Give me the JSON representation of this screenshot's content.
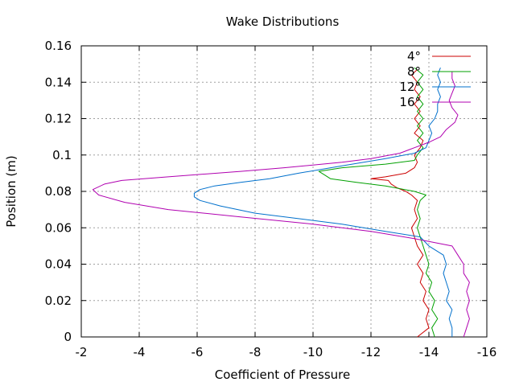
{
  "chart_data": {
    "type": "line",
    "title": "Wake Distributions",
    "xlabel": "Coefficient of Pressure",
    "ylabel": "Position (m)",
    "xlim": [
      -2,
      -16
    ],
    "ylim": [
      0,
      0.16
    ],
    "x_reversed": true,
    "grid": true,
    "legend_position": "top-right",
    "x_ticks": [
      {
        "value": -2,
        "label": "-2"
      },
      {
        "value": -4,
        "label": "-4"
      },
      {
        "value": -6,
        "label": "-6"
      },
      {
        "value": -8,
        "label": "-8"
      },
      {
        "value": -10,
        "label": "-10"
      },
      {
        "value": -12,
        "label": "-12"
      },
      {
        "value": -14,
        "label": "-14"
      },
      {
        "value": -16,
        "label": "-16"
      }
    ],
    "y_ticks": [
      {
        "value": 0,
        "label": "0"
      },
      {
        "value": 0.02,
        "label": "0.02"
      },
      {
        "value": 0.04,
        "label": "0.04"
      },
      {
        "value": 0.06,
        "label": "0.06"
      },
      {
        "value": 0.08,
        "label": "0.08"
      },
      {
        "value": 0.1,
        "label": "0.1"
      },
      {
        "value": 0.12,
        "label": "0.12"
      },
      {
        "value": 0.14,
        "label": "0.14"
      },
      {
        "value": 0.16,
        "label": "0.16"
      }
    ],
    "series": [
      {
        "name": "4°",
        "color": "#cc0000",
        "points": [
          [
            -13.6,
            0.0
          ],
          [
            -14.0,
            0.005
          ],
          [
            -13.9,
            0.01
          ],
          [
            -14.0,
            0.015
          ],
          [
            -13.8,
            0.02
          ],
          [
            -13.9,
            0.025
          ],
          [
            -13.7,
            0.03
          ],
          [
            -13.8,
            0.035
          ],
          [
            -13.6,
            0.04
          ],
          [
            -13.8,
            0.045
          ],
          [
            -13.6,
            0.05
          ],
          [
            -13.5,
            0.055
          ],
          [
            -13.4,
            0.06
          ],
          [
            -13.6,
            0.065
          ],
          [
            -13.5,
            0.07
          ],
          [
            -13.6,
            0.075
          ],
          [
            -13.4,
            0.078
          ],
          [
            -13.2,
            0.08
          ],
          [
            -12.9,
            0.082
          ],
          [
            -12.7,
            0.084
          ],
          [
            -12.6,
            0.086
          ],
          [
            -12.0,
            0.087
          ],
          [
            -12.5,
            0.088
          ],
          [
            -13.2,
            0.09
          ],
          [
            -13.5,
            0.093
          ],
          [
            -13.6,
            0.096
          ],
          [
            -13.5,
            0.1
          ],
          [
            -13.7,
            0.104
          ],
          [
            -13.8,
            0.108
          ],
          [
            -13.5,
            0.112
          ],
          [
            -13.7,
            0.116
          ],
          [
            -13.5,
            0.12
          ],
          [
            -13.7,
            0.124
          ],
          [
            -13.5,
            0.128
          ],
          [
            -13.7,
            0.132
          ],
          [
            -13.5,
            0.136
          ],
          [
            -13.6,
            0.14
          ],
          [
            -13.4,
            0.144
          ],
          [
            -13.6,
            0.147
          ]
        ]
      },
      {
        "name": "8°",
        "color": "#00a000",
        "points": [
          [
            -14.2,
            0.0
          ],
          [
            -14.1,
            0.005
          ],
          [
            -14.3,
            0.01
          ],
          [
            -14.1,
            0.015
          ],
          [
            -14.2,
            0.02
          ],
          [
            -14.0,
            0.025
          ],
          [
            -14.1,
            0.03
          ],
          [
            -13.9,
            0.035
          ],
          [
            -14.0,
            0.04
          ],
          [
            -13.9,
            0.045
          ],
          [
            -13.8,
            0.05
          ],
          [
            -13.7,
            0.055
          ],
          [
            -13.6,
            0.06
          ],
          [
            -13.7,
            0.065
          ],
          [
            -13.6,
            0.07
          ],
          [
            -13.7,
            0.075
          ],
          [
            -13.9,
            0.078
          ],
          [
            -13.5,
            0.08
          ],
          [
            -12.5,
            0.083
          ],
          [
            -11.5,
            0.085
          ],
          [
            -10.6,
            0.087
          ],
          [
            -10.4,
            0.089
          ],
          [
            -10.2,
            0.091
          ],
          [
            -11.0,
            0.093
          ],
          [
            -12.5,
            0.095
          ],
          [
            -13.5,
            0.097
          ],
          [
            -13.6,
            0.1
          ],
          [
            -13.8,
            0.104
          ],
          [
            -13.6,
            0.108
          ],
          [
            -13.8,
            0.112
          ],
          [
            -13.6,
            0.116
          ],
          [
            -13.8,
            0.12
          ],
          [
            -13.6,
            0.124
          ],
          [
            -13.8,
            0.128
          ],
          [
            -13.6,
            0.132
          ],
          [
            -13.8,
            0.136
          ],
          [
            -13.6,
            0.14
          ],
          [
            -13.8,
            0.144
          ],
          [
            -13.5,
            0.148
          ]
        ]
      },
      {
        "name": "12°",
        "color": "#0070cc",
        "points": [
          [
            -14.8,
            0.0
          ],
          [
            -14.8,
            0.005
          ],
          [
            -14.7,
            0.01
          ],
          [
            -14.8,
            0.015
          ],
          [
            -14.6,
            0.02
          ],
          [
            -14.7,
            0.025
          ],
          [
            -14.6,
            0.03
          ],
          [
            -14.5,
            0.035
          ],
          [
            -14.6,
            0.04
          ],
          [
            -14.5,
            0.045
          ],
          [
            -14.0,
            0.05
          ],
          [
            -13.7,
            0.055
          ],
          [
            -12.5,
            0.058
          ],
          [
            -11.0,
            0.062
          ],
          [
            -9.5,
            0.065
          ],
          [
            -8.0,
            0.068
          ],
          [
            -6.8,
            0.072
          ],
          [
            -6.1,
            0.075
          ],
          [
            -5.9,
            0.077
          ],
          [
            -5.9,
            0.079
          ],
          [
            -6.1,
            0.081
          ],
          [
            -6.6,
            0.083
          ],
          [
            -7.5,
            0.085
          ],
          [
            -8.5,
            0.087
          ],
          [
            -9.5,
            0.09
          ],
          [
            -11.0,
            0.094
          ],
          [
            -12.5,
            0.098
          ],
          [
            -13.5,
            0.101
          ],
          [
            -13.9,
            0.104
          ],
          [
            -14.0,
            0.108
          ],
          [
            -14.1,
            0.112
          ],
          [
            -14.0,
            0.116
          ],
          [
            -14.2,
            0.12
          ],
          [
            -14.3,
            0.124
          ],
          [
            -14.3,
            0.128
          ],
          [
            -14.4,
            0.132
          ],
          [
            -14.3,
            0.136
          ],
          [
            -14.4,
            0.14
          ],
          [
            -14.3,
            0.144
          ],
          [
            -14.4,
            0.148
          ]
        ]
      },
      {
        "name": "16°",
        "color": "#b000b0",
        "points": [
          [
            -15.2,
            0.0
          ],
          [
            -15.3,
            0.005
          ],
          [
            -15.4,
            0.01
          ],
          [
            -15.3,
            0.015
          ],
          [
            -15.4,
            0.02
          ],
          [
            -15.3,
            0.025
          ],
          [
            -15.4,
            0.03
          ],
          [
            -15.2,
            0.035
          ],
          [
            -15.2,
            0.04
          ],
          [
            -15.0,
            0.045
          ],
          [
            -14.8,
            0.05
          ],
          [
            -13.5,
            0.054
          ],
          [
            -12.0,
            0.058
          ],
          [
            -10.0,
            0.062
          ],
          [
            -7.5,
            0.066
          ],
          [
            -5.0,
            0.07
          ],
          [
            -3.5,
            0.074
          ],
          [
            -2.6,
            0.078
          ],
          [
            -2.4,
            0.081
          ],
          [
            -2.8,
            0.084
          ],
          [
            -3.4,
            0.086
          ],
          [
            -5.0,
            0.088
          ],
          [
            -7.5,
            0.091
          ],
          [
            -9.0,
            0.093
          ],
          [
            -11.0,
            0.096
          ],
          [
            -12.0,
            0.098
          ],
          [
            -13.0,
            0.101
          ],
          [
            -13.5,
            0.104
          ],
          [
            -14.0,
            0.107
          ],
          [
            -14.4,
            0.11
          ],
          [
            -14.6,
            0.114
          ],
          [
            -14.9,
            0.118
          ],
          [
            -15.0,
            0.122
          ],
          [
            -14.8,
            0.126
          ],
          [
            -14.7,
            0.13
          ],
          [
            -14.8,
            0.134
          ],
          [
            -14.9,
            0.138
          ],
          [
            -14.8,
            0.142
          ],
          [
            -14.8,
            0.146
          ]
        ]
      }
    ]
  }
}
